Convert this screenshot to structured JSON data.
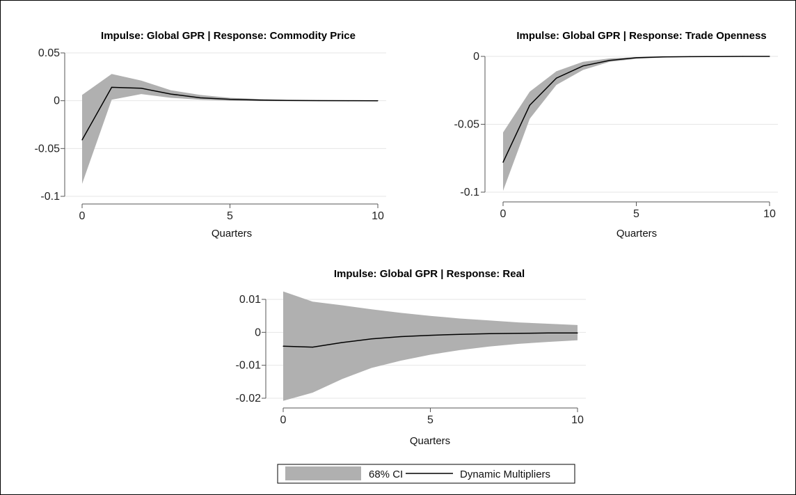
{
  "chart_data": [
    {
      "type": "area",
      "title": "Impulse: Global GPR | Response: Commodity Price",
      "xlabel": "Quarters",
      "ylabel": "",
      "xlim": [
        0,
        10
      ],
      "ylim": [
        -0.1,
        0.05
      ],
      "xticks": [
        0,
        5,
        10
      ],
      "yticks": [
        -0.1,
        -0.05,
        0,
        0.05
      ],
      "xtick_labels": [
        "0",
        "5",
        "10"
      ],
      "ytick_labels": [
        "-0.1",
        "-0.05",
        "0",
        "0.05"
      ],
      "x": [
        0,
        1,
        2,
        3,
        4,
        5,
        6,
        7,
        8,
        9,
        10
      ],
      "series": [
        {
          "name": "Dynamic Multipliers",
          "values": [
            -0.041,
            0.014,
            0.013,
            0.007,
            0.003,
            0.0015,
            0.0007,
            0.0003,
            0.0001,
            5e-05,
            0.0
          ]
        },
        {
          "name": "68% CI",
          "lower": [
            -0.087,
            0.001,
            0.007,
            0.003,
            0.001,
            0.0,
            -0.0003,
            -0.0005,
            -0.0005,
            -0.0005,
            -0.0005
          ],
          "upper": [
            0.006,
            0.028,
            0.021,
            0.011,
            0.006,
            0.003,
            0.0017,
            0.0008,
            0.0004,
            0.0002,
            0.0001
          ]
        }
      ]
    },
    {
      "type": "area",
      "title": "Impulse: Global GPR | Response: Trade Openness",
      "xlabel": "Quarters",
      "ylabel": "",
      "xlim": [
        0,
        10
      ],
      "ylim": [
        -0.1,
        0.0
      ],
      "xticks": [
        0,
        5,
        10
      ],
      "yticks": [
        -0.1,
        -0.05,
        0
      ],
      "xtick_labels": [
        "0",
        "5",
        "10"
      ],
      "ytick_labels": [
        "-0.1",
        "-0.05",
        "0"
      ],
      "x": [
        0,
        1,
        2,
        3,
        4,
        5,
        6,
        7,
        8,
        9,
        10
      ],
      "series": [
        {
          "name": "Dynamic Multipliers",
          "values": [
            -0.078,
            -0.036,
            -0.016,
            -0.007,
            -0.003,
            -0.001,
            -0.0004,
            -0.0002,
            -0.0001,
            0.0,
            0.0
          ]
        },
        {
          "name": "68% CI",
          "lower": [
            -0.099,
            -0.046,
            -0.021,
            -0.01,
            -0.004,
            -0.0018,
            -0.0008,
            -0.0004,
            -0.0002,
            -0.0001,
            -0.0001
          ],
          "upper": [
            -0.056,
            -0.026,
            -0.011,
            -0.004,
            -0.0015,
            -0.0005,
            -0.0002,
            0.0,
            0.0,
            0.0,
            0.0
          ]
        }
      ]
    },
    {
      "type": "area",
      "title": "Impulse: Global GPR | Response: Real",
      "xlabel": "Quarters",
      "ylabel": "",
      "xlim": [
        0,
        10
      ],
      "ylim": [
        -0.02,
        0.01
      ],
      "xticks": [
        0,
        5,
        10
      ],
      "yticks": [
        -0.02,
        -0.01,
        0,
        0.01
      ],
      "xtick_labels": [
        "0",
        "5",
        "10"
      ],
      "ytick_labels": [
        "-0.02",
        "-0.01",
        "0",
        "0.01"
      ],
      "x": [
        0,
        1,
        2,
        3,
        4,
        5,
        6,
        7,
        8,
        9,
        10
      ],
      "series": [
        {
          "name": "Dynamic Multipliers",
          "values": [
            -0.0042,
            -0.0045,
            -0.0031,
            -0.002,
            -0.0013,
            -0.0009,
            -0.0006,
            -0.0004,
            -0.0003,
            -0.0002,
            -0.0002
          ]
        },
        {
          "name": "68% CI",
          "lower": [
            -0.0208,
            -0.0183,
            -0.0142,
            -0.0108,
            -0.0086,
            -0.0068,
            -0.0054,
            -0.0043,
            -0.0035,
            -0.0029,
            -0.0024
          ],
          "upper": [
            0.0124,
            0.0093,
            0.0082,
            0.007,
            0.0059,
            0.005,
            0.0042,
            0.0036,
            0.003,
            0.0026,
            0.0022
          ]
        }
      ]
    }
  ],
  "legend": {
    "placement": "bottom-center",
    "ci_label": "68% CI",
    "line_label": "Dynamic Multipliers"
  },
  "colors": {
    "ci_fill": "#b0b0b0",
    "line": "#000000",
    "grid": "#e6e6e6",
    "axis": "#555555"
  },
  "grid": true
}
